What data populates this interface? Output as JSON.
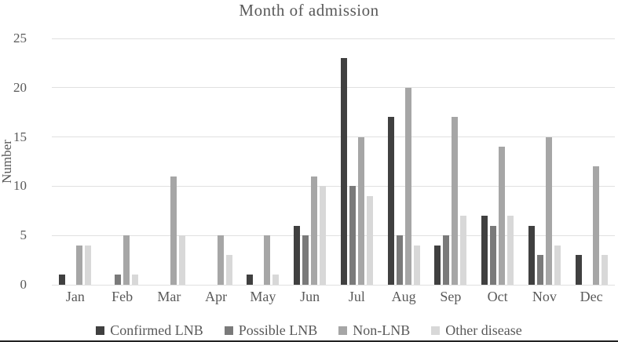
{
  "chart_data": {
    "type": "bar",
    "title": "Month of admission",
    "ylabel": "Number",
    "xlabel": "",
    "ylim": [
      0,
      25
    ],
    "yticks": [
      0,
      5,
      10,
      15,
      20,
      25
    ],
    "grid": true,
    "legend_position": "bottom",
    "categories": [
      "Jan",
      "Feb",
      "Mar",
      "Apr",
      "May",
      "Jun",
      "Jul",
      "Aug",
      "Sep",
      "Oct",
      "Nov",
      "Dec"
    ],
    "series": [
      {
        "name": "Confirmed LNB",
        "color": "#404040",
        "values": [
          1,
          0,
          0,
          0,
          1,
          6,
          23,
          17,
          4,
          7,
          6,
          3
        ]
      },
      {
        "name": "Possible LNB",
        "color": "#7a7a7a",
        "values": [
          0,
          1,
          0,
          0,
          0,
          5,
          10,
          5,
          5,
          6,
          3,
          0
        ]
      },
      {
        "name": "Non-LNB",
        "color": "#a6a6a6",
        "values": [
          4,
          5,
          11,
          5,
          5,
          11,
          15,
          20,
          17,
          14,
          15,
          12
        ]
      },
      {
        "name": "Other disease",
        "color": "#d8d8d8",
        "values": [
          4,
          1,
          5,
          3,
          1,
          10,
          9,
          4,
          7,
          7,
          4,
          3
        ]
      }
    ],
    "colors": {
      "gridline": "#e0e0e0",
      "text": "#595959",
      "bottom_rule": "#222222"
    }
  }
}
